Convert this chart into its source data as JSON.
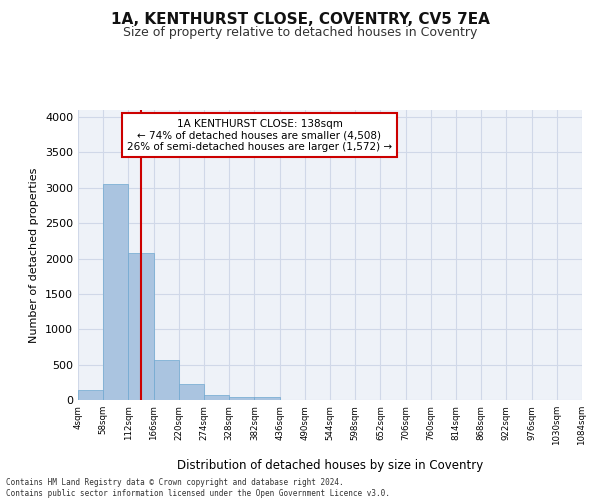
{
  "title": "1A, KENTHURST CLOSE, COVENTRY, CV5 7EA",
  "subtitle": "Size of property relative to detached houses in Coventry",
  "xlabel": "Distribution of detached houses by size in Coventry",
  "ylabel": "Number of detached properties",
  "bin_labels": [
    "4sqm",
    "58sqm",
    "112sqm",
    "166sqm",
    "220sqm",
    "274sqm",
    "328sqm",
    "382sqm",
    "436sqm",
    "490sqm",
    "544sqm",
    "598sqm",
    "652sqm",
    "706sqm",
    "760sqm",
    "814sqm",
    "868sqm",
    "922sqm",
    "976sqm",
    "1030sqm",
    "1084sqm"
  ],
  "bar_values": [
    145,
    3060,
    2080,
    560,
    230,
    65,
    40,
    40,
    0,
    0,
    0,
    0,
    0,
    0,
    0,
    0,
    0,
    0,
    0,
    0
  ],
  "bar_color": "#aac4e0",
  "bar_edge_color": "#6fa8d0",
  "grid_color": "#d0d8e8",
  "background_color": "#eef2f8",
  "vline_color": "#cc0000",
  "annotation_text": "1A KENTHURST CLOSE: 138sqm\n← 74% of detached houses are smaller (4,508)\n26% of semi-detached houses are larger (1,572) →",
  "annotation_box_color": "#ffffff",
  "annotation_box_edge": "#cc0000",
  "ylim": [
    0,
    4100
  ],
  "yticks": [
    0,
    500,
    1000,
    1500,
    2000,
    2500,
    3000,
    3500,
    4000
  ],
  "footer_line1": "Contains HM Land Registry data © Crown copyright and database right 2024.",
  "footer_line2": "Contains public sector information licensed under the Open Government Licence v3.0."
}
